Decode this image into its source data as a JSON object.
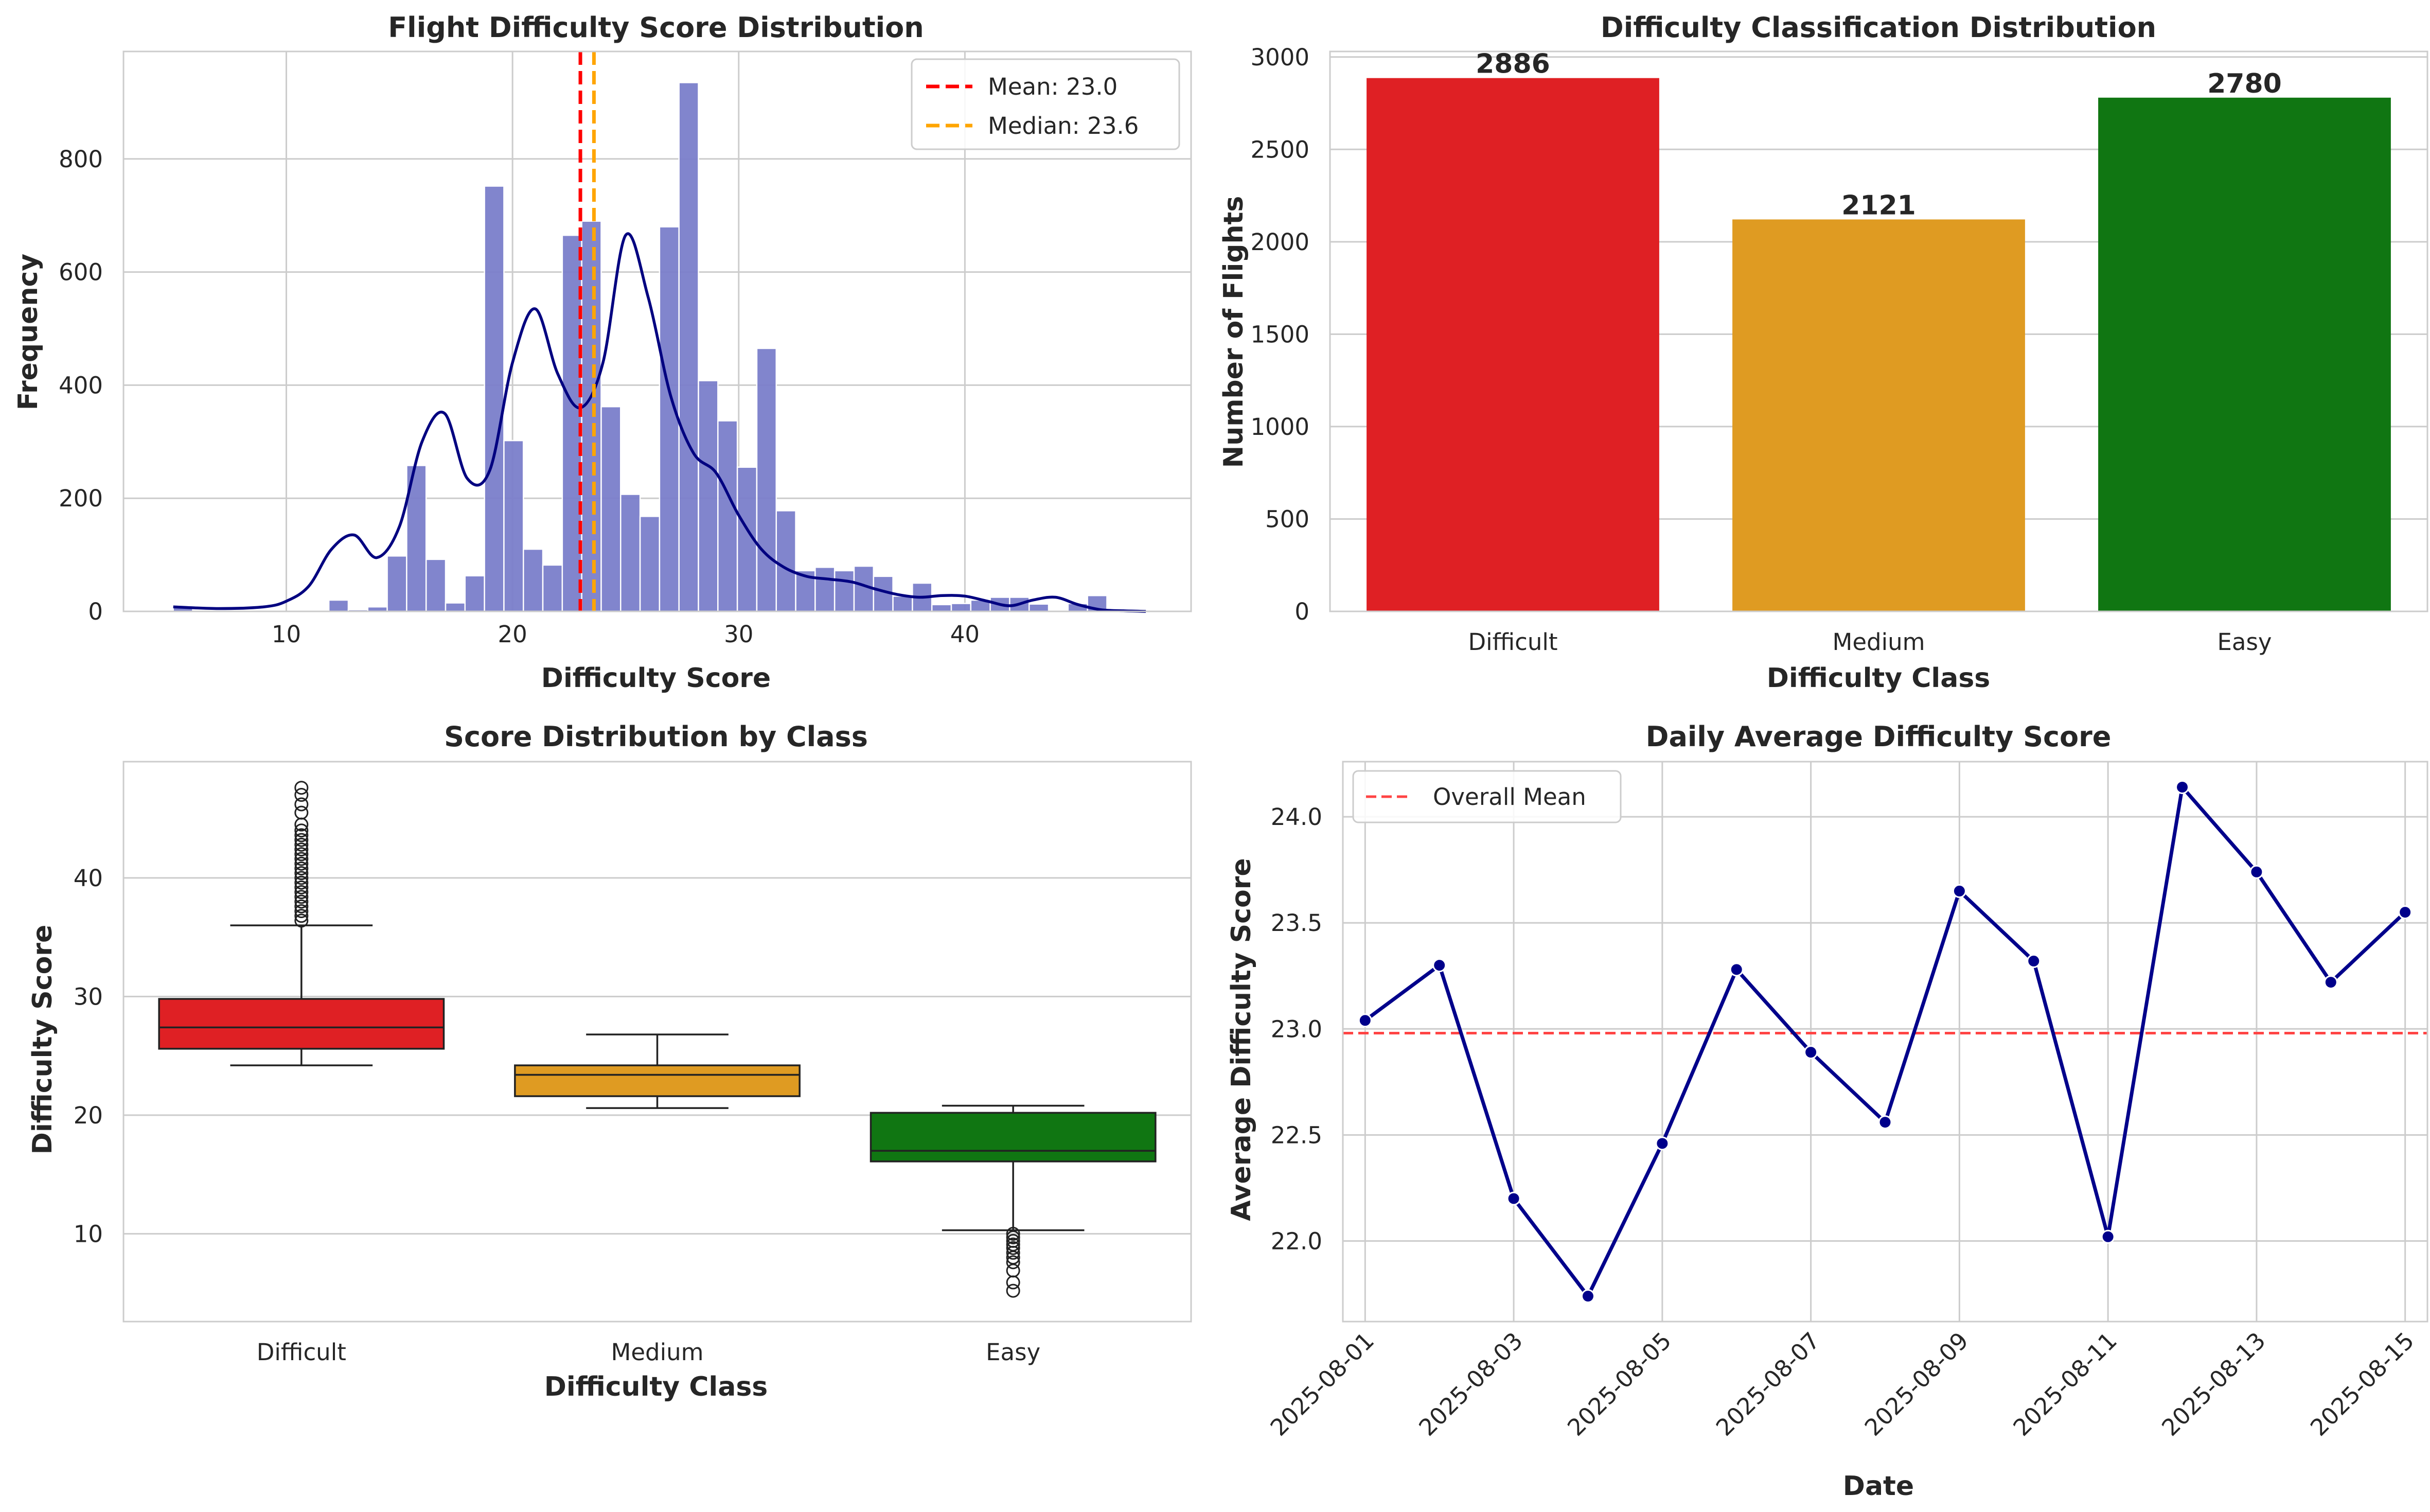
{
  "chart_data": [
    {
      "type": "histogram",
      "title": "Flight Difficulty Score Distribution",
      "xlabel": "Difficulty Score",
      "ylabel": "Frequency",
      "xlim": [
        2.8,
        50.0
      ],
      "ylim": [
        0,
        990
      ],
      "xticks": [
        10,
        20,
        30,
        40
      ],
      "yticks": [
        0,
        200,
        400,
        600,
        800
      ],
      "bin_start": 5.0,
      "bin_width": 0.86,
      "counts": [
        10,
        2,
        0,
        0,
        0,
        0,
        0,
        0,
        20,
        3,
        8,
        98,
        258,
        92,
        15,
        63,
        752,
        302,
        110,
        82,
        665,
        690,
        362,
        207,
        168,
        680,
        935,
        408,
        337,
        255,
        465,
        178,
        72,
        78,
        72,
        80,
        62,
        27,
        50,
        12,
        14,
        20,
        25,
        25,
        13,
        0,
        14,
        28
      ],
      "kde_x": [
        5,
        7,
        9,
        10,
        11,
        12,
        13,
        14,
        15,
        16,
        17,
        18,
        19,
        20,
        21,
        22,
        23,
        24,
        25,
        26,
        27,
        28,
        29,
        30,
        31,
        32,
        33,
        34,
        35,
        36,
        37,
        38,
        39,
        40,
        41,
        42,
        43,
        44,
        45,
        46,
        47,
        48
      ],
      "kde_y": [
        8,
        5,
        8,
        18,
        45,
        110,
        135,
        95,
        150,
        300,
        350,
        235,
        250,
        440,
        535,
        420,
        360,
        440,
        665,
        555,
        380,
        280,
        245,
        170,
        110,
        78,
        62,
        57,
        52,
        40,
        30,
        25,
        28,
        27,
        18,
        10,
        20,
        25,
        12,
        3,
        1,
        0
      ],
      "series": [
        {
          "name": "Mean: 23.0",
          "value": 23.0,
          "color": "#ff0000"
        },
        {
          "name": "Median: 23.6",
          "value": 23.6,
          "color": "#ffa500"
        }
      ],
      "legend": "top-right",
      "bar_color": "#7b7fcb",
      "kde_color": "#000080",
      "grid": true
    },
    {
      "type": "bar",
      "title": "Difficulty Classification Distribution",
      "xlabel": "Difficulty Class",
      "ylabel": "Number of Flights",
      "categories": [
        "Difficult",
        "Medium",
        "Easy"
      ],
      "values": [
        2886,
        2121,
        2780
      ],
      "value_labels": [
        "2886",
        "2121",
        "2780"
      ],
      "colors": [
        "#df2024",
        "#df9b22",
        "#107612"
      ],
      "ylim": [
        0,
        3030
      ],
      "yticks": [
        0,
        500,
        1000,
        1500,
        2000,
        2500,
        3000
      ],
      "grid": true
    },
    {
      "type": "box",
      "title": "Score Distribution by Class",
      "xlabel": "Difficulty Class",
      "ylabel": "Difficulty Score",
      "categories": [
        "Difficult",
        "Medium",
        "Easy"
      ],
      "ylim": [
        2.6,
        49.8
      ],
      "yticks": [
        10,
        20,
        30,
        40
      ],
      "colors": [
        "#df2024",
        "#df9b22",
        "#107612"
      ],
      "boxes": [
        {
          "whisker_low": 24.2,
          "q1": 25.6,
          "median": 27.4,
          "q3": 29.8,
          "whisker_high": 36.0,
          "outliers": [
            36.4,
            36.8,
            37.2,
            37.6,
            38.0,
            38.4,
            38.8,
            39.2,
            39.6,
            40.0,
            40.4,
            40.8,
            41.2,
            41.6,
            42.0,
            42.4,
            42.8,
            43.2,
            43.6,
            44.0,
            44.5,
            45.5,
            46.2,
            47.0,
            47.6
          ]
        },
        {
          "whisker_low": 20.6,
          "q1": 21.6,
          "median": 23.4,
          "q3": 24.2,
          "whisker_high": 26.8,
          "outliers": []
        },
        {
          "whisker_low": 10.3,
          "q1": 16.1,
          "median": 17.0,
          "q3": 20.2,
          "whisker_high": 20.8,
          "outliers": [
            10.0,
            9.7,
            9.4,
            9.1,
            8.8,
            8.4,
            8.0,
            7.6,
            6.9,
            5.9,
            5.2
          ]
        }
      ],
      "grid": true
    },
    {
      "type": "line",
      "title": "Daily Average Difficulty Score",
      "xlabel": "Date",
      "ylabel": "Average Difficulty Score",
      "x": [
        "2025-08-01",
        "2025-08-02",
        "2025-08-03",
        "2025-08-04",
        "2025-08-05",
        "2025-08-06",
        "2025-08-07",
        "2025-08-08",
        "2025-08-09",
        "2025-08-10",
        "2025-08-11",
        "2025-08-12",
        "2025-08-13",
        "2025-08-14",
        "2025-08-15"
      ],
      "values": [
        23.04,
        23.3,
        22.2,
        21.74,
        22.46,
        23.28,
        22.89,
        22.56,
        23.65,
        23.32,
        22.02,
        24.14,
        23.74,
        23.22,
        23.55
      ],
      "xticks": [
        "2025-08-01",
        "2025-08-03",
        "2025-08-05",
        "2025-08-07",
        "2025-08-09",
        "2025-08-11",
        "2025-08-13",
        "2025-08-15"
      ],
      "ylim": [
        21.62,
        24.26
      ],
      "yticks": [
        "22.0",
        "22.5",
        "23.0",
        "23.5",
        "24.0"
      ],
      "reference_line": {
        "name": "Overall Mean",
        "value": 22.98,
        "color": "#ff4444"
      },
      "line_color": "#00008b",
      "legend": "top-left",
      "grid": true
    }
  ]
}
